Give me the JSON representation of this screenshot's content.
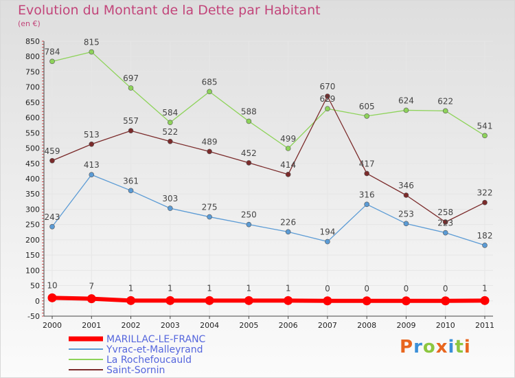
{
  "title": "Evolution du Montant de la Dette par Habitant",
  "subtitle": "(en €)",
  "logo_text": "Proxiti",
  "colors": {
    "title": "#c2457a",
    "marillac": "#ff0000",
    "yvrac": "#5b9bd5",
    "rochefoucauld": "#8ed35a",
    "sornin": "#7b2b2b"
  },
  "chart_data": {
    "type": "line",
    "title": "Evolution du Montant de la Dette par Habitant",
    "subtitle": "(en €)",
    "x": [
      "2000",
      "2001",
      "2002",
      "2003",
      "2004",
      "2005",
      "2006",
      "2007",
      "2008",
      "2009",
      "2010",
      "2011"
    ],
    "ylim": [
      -50,
      850
    ],
    "yticks": [
      -50,
      0,
      50,
      100,
      150,
      200,
      250,
      300,
      350,
      400,
      450,
      500,
      550,
      600,
      650,
      700,
      750,
      800,
      850
    ],
    "grid": true,
    "legend_position": "bottom-left",
    "series": [
      {
        "name": "MARILLAC-LE-FRANC",
        "color": "#ff0000",
        "values": [
          10,
          7,
          1,
          1,
          1,
          1,
          1,
          0,
          0,
          0,
          0,
          1
        ]
      },
      {
        "name": "Yvrac-et-Malleyrand",
        "color": "#5b9bd5",
        "values": [
          243,
          413,
          361,
          303,
          275,
          250,
          226,
          194,
          316,
          253,
          223,
          182
        ]
      },
      {
        "name": "La Rochefoucauld",
        "color": "#8ed35a",
        "values": [
          784,
          815,
          697,
          584,
          685,
          588,
          499,
          629,
          605,
          624,
          622,
          541
        ]
      },
      {
        "name": "Saint-Sornin",
        "color": "#7b2b2b",
        "values": [
          459,
          513,
          557,
          522,
          489,
          452,
          414,
          670,
          417,
          346,
          258,
          322
        ]
      }
    ]
  }
}
